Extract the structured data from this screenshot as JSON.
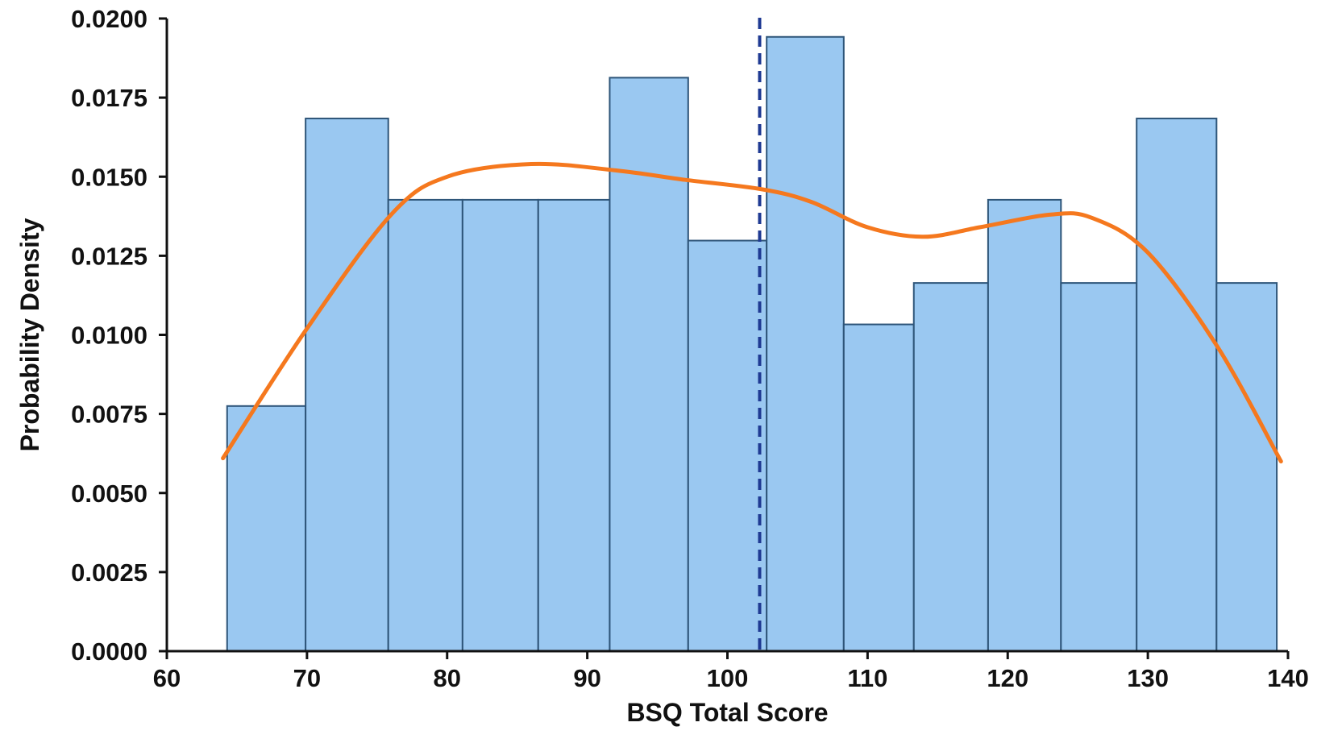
{
  "chart_data": {
    "type": "bar",
    "subtype": "histogram",
    "title": "",
    "xlabel": "BSQ Total Score",
    "ylabel": "Probability Density",
    "xlim": [
      60,
      140
    ],
    "ylim": [
      0,
      0.02
    ],
    "x_ticks": [
      "60",
      "70",
      "80",
      "90",
      "100",
      "110",
      "120",
      "130",
      "140"
    ],
    "x_tick_values": [
      60,
      70,
      80,
      90,
      100,
      110,
      120,
      130,
      140
    ],
    "y_ticks": [
      "0.0000",
      "0.0025",
      "0.0050",
      "0.0075",
      "0.0100",
      "0.0125",
      "0.0150",
      "0.0175",
      "0.0200"
    ],
    "y_tick_values": [
      0,
      0.0025,
      0.005,
      0.0075,
      0.01,
      0.0125,
      0.015,
      0.0175,
      0.02
    ],
    "grid": false,
    "bins": [
      {
        "start": 64.3,
        "end": 69.9,
        "density": 0.00775
      },
      {
        "start": 69.9,
        "end": 75.8,
        "density": 0.01684
      },
      {
        "start": 75.8,
        "end": 81.1,
        "density": 0.01427
      },
      {
        "start": 81.1,
        "end": 86.5,
        "density": 0.01427
      },
      {
        "start": 86.5,
        "end": 91.6,
        "density": 0.01427
      },
      {
        "start": 91.6,
        "end": 97.2,
        "density": 0.01813
      },
      {
        "start": 97.2,
        "end": 102.8,
        "density": 0.01298
      },
      {
        "start": 102.8,
        "end": 108.3,
        "density": 0.01942
      },
      {
        "start": 108.3,
        "end": 113.3,
        "density": 0.01033
      },
      {
        "start": 113.3,
        "end": 118.6,
        "density": 0.01164
      },
      {
        "start": 118.6,
        "end": 123.8,
        "density": 0.01427
      },
      {
        "start": 123.8,
        "end": 129.2,
        "density": 0.01164
      },
      {
        "start": 129.2,
        "end": 134.9,
        "density": 0.01684
      },
      {
        "start": 134.9,
        "end": 139.2,
        "density": 0.01164
      }
    ],
    "kde": {
      "x": [
        64,
        70,
        76,
        80,
        86,
        92,
        97,
        102.5,
        106,
        110,
        114,
        118,
        123,
        126,
        130,
        135,
        139.5
      ],
      "y": [
        0.0061,
        0.0102,
        0.0138,
        0.015,
        0.0154,
        0.0152,
        0.0149,
        0.0146,
        0.0142,
        0.0134,
        0.0131,
        0.0134,
        0.0138,
        0.0137,
        0.0126,
        0.0096,
        0.006
      ]
    },
    "mean_line": {
      "x": 102.3,
      "style": "dashed"
    },
    "colors": {
      "bar_fill": "#9ac8f1",
      "bar_edge": "#2e5579",
      "kde": "#f5781e",
      "mean_line": "#1f3a93",
      "axis": "#111111"
    }
  }
}
